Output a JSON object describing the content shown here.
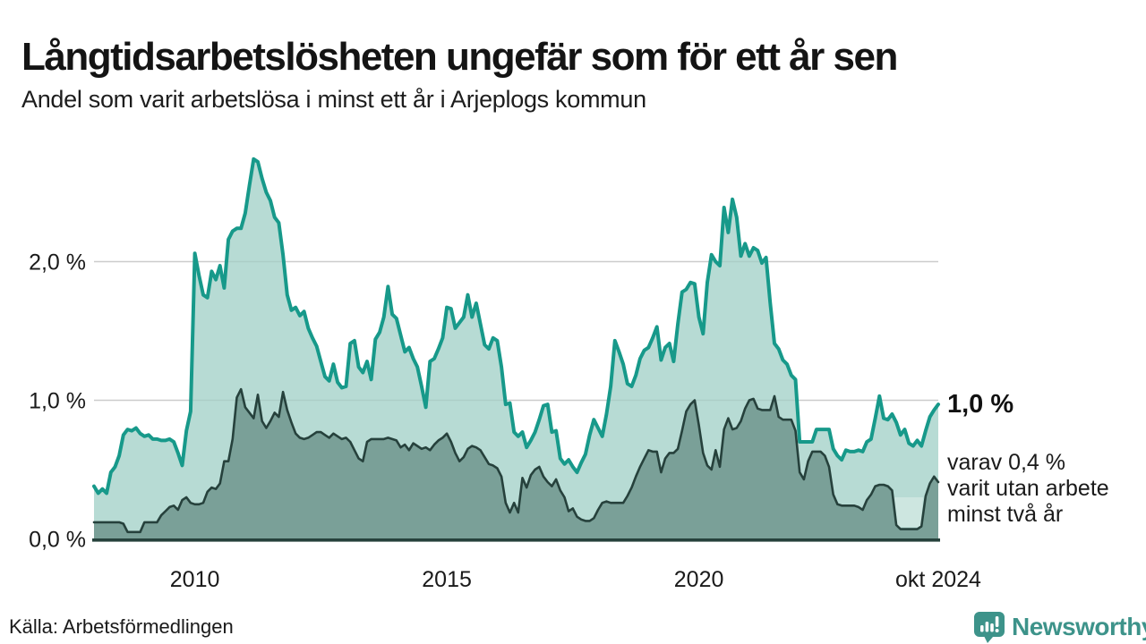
{
  "header": {
    "title": "Långtidsarbetslösheten ungefär som för ett år sen",
    "subtitle": "Andel som varit arbetslösa i minst ett år i Arjeplogs kommun"
  },
  "annotation": {
    "primary": "1,0 %",
    "lines": [
      "varav 0,4 %",
      "varit utan arbete",
      "minst två år"
    ]
  },
  "footer": {
    "source": "Källa: Arbetsförmedlingen",
    "brand": "Newsworthy"
  },
  "colors": {
    "teal_line": "#17998a",
    "teal_fill": "#b7dbd4",
    "dark_line": "#26413c",
    "dark_fill": "#7aa098",
    "grid": "#d9d9d9",
    "baseline": "#26413c",
    "text": "#1a1a1a",
    "brand": "#3d938a",
    "highlight_fill": "#cde6e0"
  },
  "chart_data": {
    "type": "area",
    "title": "Andel som varit arbetslösa i minst ett år i Arjeplogs kommun",
    "unit": "%",
    "frequency": "monthly",
    "x_start": "2008-01",
    "x_end": "2024-10",
    "ylim": [
      0,
      2.9
    ],
    "grid": true,
    "y_ticks": [
      {
        "label": "2,0 %",
        "value": 2.0
      },
      {
        "label": "1,0 %",
        "value": 1.0
      },
      {
        "label": "0,0 %",
        "value": 0.0
      }
    ],
    "x_ticks": [
      {
        "label": "2010",
        "month": 24
      },
      {
        "label": "2015",
        "month": 84
      },
      {
        "label": "2020",
        "month": 144
      },
      {
        "label": "okt 2024",
        "month": 201
      }
    ],
    "end_values": {
      "minst_ett_ar": "1,0 %",
      "minst_tva_ar": "0,4 %"
    },
    "data_gap_highlight": {
      "from_month": 190.6,
      "to_month": 197.4,
      "top_value": 0.3,
      "bottom_value": 0.085
    },
    "series": [
      {
        "name": "Andel arbetslösa minst ett år",
        "values": [
          0.38,
          0.33,
          0.36,
          0.33,
          0.48,
          0.52,
          0.6,
          0.75,
          0.79,
          0.78,
          0.8,
          0.76,
          0.74,
          0.75,
          0.72,
          0.72,
          0.71,
          0.71,
          0.72,
          0.7,
          0.62,
          0.53,
          0.78,
          0.92,
          2.06,
          1.9,
          1.76,
          1.74,
          1.93,
          1.87,
          1.97,
          1.81,
          2.16,
          2.22,
          2.24,
          2.24,
          2.35,
          2.55,
          2.74,
          2.72,
          2.6,
          2.5,
          2.44,
          2.32,
          2.28,
          2.05,
          1.76,
          1.65,
          1.67,
          1.61,
          1.64,
          1.52,
          1.45,
          1.39,
          1.28,
          1.17,
          1.14,
          1.26,
          1.13,
          1.09,
          1.1,
          1.41,
          1.43,
          1.24,
          1.2,
          1.28,
          1.15,
          1.44,
          1.49,
          1.6,
          1.82,
          1.62,
          1.59,
          1.47,
          1.35,
          1.38,
          1.3,
          1.24,
          1.1,
          0.95,
          1.28,
          1.3,
          1.37,
          1.45,
          1.67,
          1.66,
          1.52,
          1.56,
          1.6,
          1.76,
          1.6,
          1.7,
          1.55,
          1.4,
          1.37,
          1.45,
          1.43,
          1.24,
          0.97,
          0.98,
          0.77,
          0.74,
          0.77,
          0.66,
          0.71,
          0.77,
          0.86,
          0.96,
          0.97,
          0.77,
          0.78,
          0.58,
          0.54,
          0.57,
          0.52,
          0.48,
          0.55,
          0.61,
          0.75,
          0.86,
          0.8,
          0.74,
          0.9,
          1.1,
          1.43,
          1.35,
          1.26,
          1.12,
          1.1,
          1.18,
          1.3,
          1.36,
          1.38,
          1.45,
          1.53,
          1.29,
          1.38,
          1.41,
          1.28,
          1.55,
          1.78,
          1.8,
          1.85,
          1.84,
          1.6,
          1.48,
          1.85,
          2.05,
          2.0,
          1.97,
          2.39,
          2.21,
          2.45,
          2.32,
          2.04,
          2.13,
          2.04,
          2.1,
          2.08,
          1.99,
          2.03,
          1.7,
          1.41,
          1.37,
          1.29,
          1.26,
          1.18,
          1.15,
          0.7,
          0.7,
          0.7,
          0.7,
          0.79,
          0.79,
          0.79,
          0.79,
          0.65,
          0.6,
          0.57,
          0.64,
          0.63,
          0.63,
          0.64,
          0.63,
          0.7,
          0.72,
          0.87,
          1.03,
          0.87,
          0.86,
          0.9,
          0.84,
          0.75,
          0.79,
          0.69,
          0.67,
          0.71,
          0.67,
          0.78,
          0.88,
          0.93,
          0.97
        ]
      },
      {
        "name": "Varav arbetslösa minst två år",
        "values": [
          0.12,
          0.12,
          0.12,
          0.12,
          0.12,
          0.12,
          0.12,
          0.11,
          0.05,
          0.05,
          0.05,
          0.05,
          0.12,
          0.12,
          0.12,
          0.12,
          0.17,
          0.2,
          0.23,
          0.24,
          0.21,
          0.28,
          0.3,
          0.26,
          0.25,
          0.25,
          0.26,
          0.34,
          0.37,
          0.36,
          0.4,
          0.56,
          0.56,
          0.72,
          1.02,
          1.08,
          0.95,
          0.91,
          0.87,
          1.04,
          0.85,
          0.8,
          0.85,
          0.91,
          0.88,
          1.06,
          0.93,
          0.84,
          0.76,
          0.73,
          0.72,
          0.73,
          0.75,
          0.77,
          0.77,
          0.75,
          0.73,
          0.76,
          0.74,
          0.72,
          0.73,
          0.7,
          0.64,
          0.58,
          0.56,
          0.7,
          0.72,
          0.72,
          0.72,
          0.72,
          0.73,
          0.72,
          0.71,
          0.66,
          0.68,
          0.64,
          0.69,
          0.67,
          0.65,
          0.66,
          0.64,
          0.68,
          0.71,
          0.73,
          0.76,
          0.7,
          0.62,
          0.56,
          0.59,
          0.65,
          0.67,
          0.66,
          0.64,
          0.59,
          0.54,
          0.53,
          0.51,
          0.45,
          0.26,
          0.19,
          0.26,
          0.19,
          0.44,
          0.37,
          0.46,
          0.5,
          0.52,
          0.45,
          0.41,
          0.38,
          0.43,
          0.35,
          0.3,
          0.2,
          0.22,
          0.16,
          0.14,
          0.13,
          0.13,
          0.15,
          0.21,
          0.26,
          0.27,
          0.26,
          0.26,
          0.26,
          0.26,
          0.31,
          0.37,
          0.45,
          0.52,
          0.58,
          0.64,
          0.63,
          0.63,
          0.48,
          0.58,
          0.62,
          0.62,
          0.65,
          0.78,
          0.92,
          0.97,
          1.0,
          0.82,
          0.62,
          0.53,
          0.5,
          0.64,
          0.52,
          0.79,
          0.87,
          0.79,
          0.8,
          0.85,
          0.94,
          1.0,
          1.01,
          0.94,
          0.93,
          0.93,
          0.93,
          1.03,
          0.88,
          0.86,
          0.86,
          0.86,
          0.78,
          0.48,
          0.43,
          0.56,
          0.63,
          0.63,
          0.63,
          0.6,
          0.52,
          0.32,
          0.25,
          0.24,
          0.24,
          0.24,
          0.24,
          0.23,
          0.21,
          0.28,
          0.32,
          0.38,
          0.39,
          0.39,
          0.38,
          0.35,
          0.1,
          0.07,
          0.07,
          0.07,
          0.07,
          0.07,
          0.09,
          0.31,
          0.4,
          0.45,
          0.41
        ]
      }
    ]
  }
}
